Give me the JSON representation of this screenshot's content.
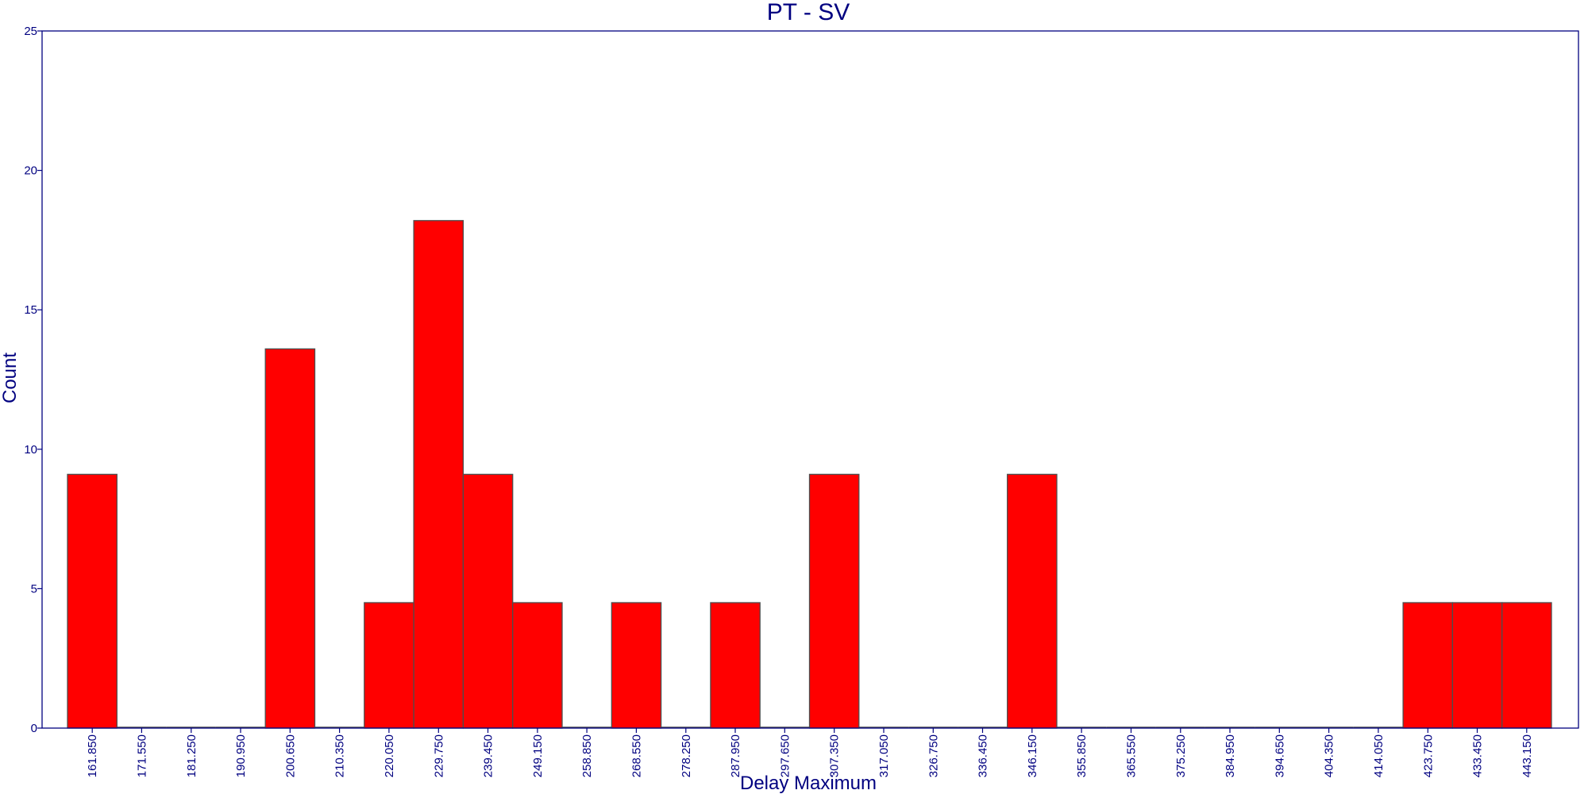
{
  "colors": {
    "bar_fill": "#ff0000",
    "bar_stroke": "#4d4d4d",
    "axis": "#000080",
    "text": "#000080",
    "background": "#ffffff"
  },
  "chart_data": {
    "type": "bar",
    "title": "PT - SV",
    "xlabel": "Delay Maximum",
    "ylabel": "Count",
    "ylim": [
      0,
      25
    ],
    "yticks": [
      0,
      5,
      10,
      15,
      20,
      25
    ],
    "grid": false,
    "legend": "none",
    "categories": [
      "161.850",
      "171.550",
      "181.250",
      "190.950",
      "200.650",
      "210.350",
      "220.050",
      "229.750",
      "239.450",
      "249.150",
      "258.850",
      "268.550",
      "278.250",
      "287.950",
      "297.650",
      "307.350",
      "317.050",
      "326.750",
      "336.450",
      "346.150",
      "355.850",
      "365.550",
      "375.250",
      "384.950",
      "394.650",
      "404.350",
      "414.050",
      "423.750",
      "433.450",
      "443.150"
    ],
    "values": [
      9.1,
      0,
      0,
      0,
      13.6,
      0,
      4.5,
      18.2,
      9.1,
      4.5,
      0,
      4.5,
      0,
      4.5,
      0,
      9.1,
      0,
      0,
      0,
      9.1,
      0,
      0,
      0,
      0,
      0,
      0,
      0,
      4.5,
      4.5,
      4.5
    ]
  }
}
